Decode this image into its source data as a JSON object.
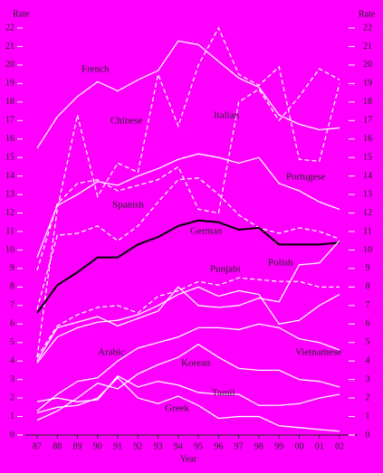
{
  "chart_data": {
    "type": "line",
    "y_label": "Rate",
    "y2_label": "Rate",
    "x_label": "Year",
    "categories": [
      "87",
      "88",
      "89",
      "90",
      "91",
      "92",
      "93",
      "94",
      "95",
      "96",
      "97",
      "98",
      "99",
      "00",
      "01",
      "02"
    ],
    "ylim": [
      0,
      22
    ],
    "yticks": [
      0,
      1,
      2,
      3,
      4,
      5,
      6,
      7,
      8,
      9,
      10,
      11,
      12,
      13,
      14,
      15,
      16,
      17,
      18,
      19,
      20,
      21,
      22
    ],
    "y2ticks": [
      0,
      1,
      2,
      3,
      4,
      5,
      6,
      7,
      8,
      9,
      10,
      11,
      12,
      13,
      14,
      15,
      16,
      17,
      18,
      19,
      20,
      21,
      22
    ],
    "series": [
      {
        "name": "French",
        "color": "#ffffff",
        "dashed": false,
        "values": [
          15.5,
          17.2,
          18.3,
          19.1,
          18.6,
          19.2,
          19.7,
          21.3,
          21.1,
          20.2,
          19.3,
          18.8,
          17.3,
          16.8,
          16.5,
          16.6
        ]
      },
      {
        "name": "Chinese",
        "color": "#ffffff",
        "dashed": true,
        "values": [
          4.2,
          12.2,
          17.3,
          12.9,
          14.7,
          14.2,
          19.5,
          16.7,
          20.0,
          22.0,
          19.5,
          18.9,
          19.9,
          14.9,
          14.8,
          19.0
        ]
      },
      {
        "name": "Italian",
        "color": "#ffffff",
        "dashed": true,
        "values": [
          8.9,
          12.5,
          13.6,
          13.8,
          13.2,
          13.5,
          13.8,
          14.5,
          12.2,
          12.0,
          18.0,
          18.7,
          17.0,
          18.3,
          19.8,
          19.2
        ]
      },
      {
        "name": "Portugese",
        "color": "#ffffff",
        "dashed": false,
        "values": [
          9.6,
          12.4,
          13.0,
          13.7,
          13.5,
          14.0,
          14.4,
          14.9,
          15.2,
          15.0,
          14.7,
          15.0,
          13.6,
          13.2,
          12.6,
          12.2
        ]
      },
      {
        "name": "Spanish",
        "color": "#ffffff",
        "dashed": true,
        "values": [
          6.8,
          10.8,
          10.9,
          11.3,
          10.5,
          11.3,
          12.6,
          13.8,
          13.9,
          13.0,
          11.9,
          11.2,
          10.9,
          11.2,
          11.0,
          10.6
        ]
      },
      {
        "name": "German",
        "color": "#000000",
        "dashed": false,
        "values": [
          6.6,
          8.1,
          8.8,
          9.6,
          9.6,
          10.3,
          10.7,
          11.3,
          11.6,
          11.5,
          11.1,
          11.2,
          10.3,
          10.3,
          10.3,
          10.4
        ]
      },
      {
        "name": "Punjabi",
        "color": "#ffffff",
        "dashed": true,
        "values": [
          4.2,
          5.9,
          6.5,
          6.9,
          7.0,
          6.6,
          7.5,
          7.8,
          8.3,
          8.1,
          8.5,
          8.4,
          8.3,
          8.3,
          8.0,
          8.0
        ]
      },
      {
        "name": "Polish",
        "color": "#ffffff",
        "dashed": false,
        "values": [
          4.0,
          5.8,
          6.1,
          6.4,
          5.9,
          6.3,
          6.7,
          8.0,
          7.0,
          6.9,
          7.0,
          7.4,
          7.2,
          9.2,
          9.3,
          10.5
        ]
      },
      {
        "name": "Arabic",
        "color": "#ffffff",
        "dashed": false,
        "values": [
          3.9,
          5.3,
          5.8,
          6.1,
          6.2,
          6.5,
          7.0,
          7.6,
          8.0,
          7.5,
          7.8,
          7.6,
          6.0,
          6.2,
          7.0,
          7.6
        ]
      },
      {
        "name": "Vietnamese",
        "color": "#ffffff",
        "dashed": false,
        "values": [
          1.3,
          2.2,
          2.9,
          3.1,
          4.0,
          4.7,
          5.0,
          5.3,
          5.8,
          5.8,
          5.7,
          6.0,
          5.8,
          5.2,
          5.0,
          4.6
        ]
      },
      {
        "name": "Korean",
        "color": "#ffffff",
        "dashed": false,
        "values": [
          0.8,
          1.3,
          2.0,
          2.8,
          2.5,
          3.3,
          3.8,
          4.2,
          4.9,
          4.2,
          3.6,
          3.5,
          3.5,
          3.0,
          2.9,
          2.6
        ]
      },
      {
        "name": "Tamil",
        "color": "#ffffff",
        "dashed": false,
        "values": [
          1.8,
          2.0,
          1.8,
          1.9,
          3.2,
          2.6,
          2.9,
          2.7,
          2.3,
          2.2,
          2.2,
          1.6,
          1.6,
          1.7,
          2.0,
          2.2
        ]
      },
      {
        "name": "Greek",
        "color": "#ffffff",
        "dashed": false,
        "values": [
          1.2,
          1.5,
          1.6,
          2.0,
          3.1,
          2.0,
          1.7,
          2.1,
          1.6,
          0.9,
          1.0,
          1.0,
          0.5,
          0.4,
          0.3,
          0.2
        ]
      }
    ]
  }
}
